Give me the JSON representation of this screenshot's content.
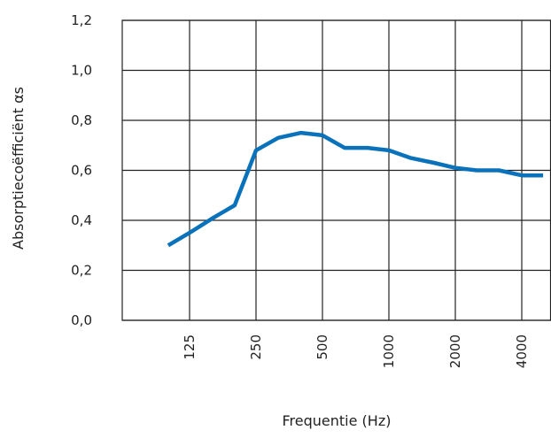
{
  "chart_data": {
    "type": "line",
    "xlabel": "Frequentie (Hz)",
    "ylabel": "Absorptiecoëfficiënt αs",
    "x_scale": "log",
    "x_ticks": [
      125,
      250,
      500,
      1000,
      2000,
      4000
    ],
    "x_tick_labels": [
      "125",
      "250",
      "500",
      "1000",
      "2000",
      "4000"
    ],
    "y_ticks": [
      0.0,
      0.2,
      0.4,
      0.6,
      0.8,
      1.0,
      1.2
    ],
    "y_tick_labels": [
      "0,0",
      "0,2",
      "0,4",
      "0,6",
      "0,8",
      "1,0",
      "1,2"
    ],
    "ylim": [
      0.0,
      1.2
    ],
    "xlim": [
      63,
      5000
    ],
    "grid": true,
    "legend": "none",
    "series": [
      {
        "color": "#0a72ba",
        "points": [
          [
            100,
            0.3
          ],
          [
            125,
            0.35
          ],
          [
            160,
            0.41
          ],
          [
            200,
            0.46
          ],
          [
            250,
            0.68
          ],
          [
            315,
            0.73
          ],
          [
            400,
            0.75
          ],
          [
            500,
            0.74
          ],
          [
            630,
            0.69
          ],
          [
            800,
            0.69
          ],
          [
            1000,
            0.68
          ],
          [
            1250,
            0.65
          ],
          [
            1600,
            0.63
          ],
          [
            2000,
            0.61
          ],
          [
            2500,
            0.6
          ],
          [
            3150,
            0.6
          ],
          [
            4000,
            0.58
          ],
          [
            5000,
            0.58
          ]
        ]
      }
    ]
  }
}
